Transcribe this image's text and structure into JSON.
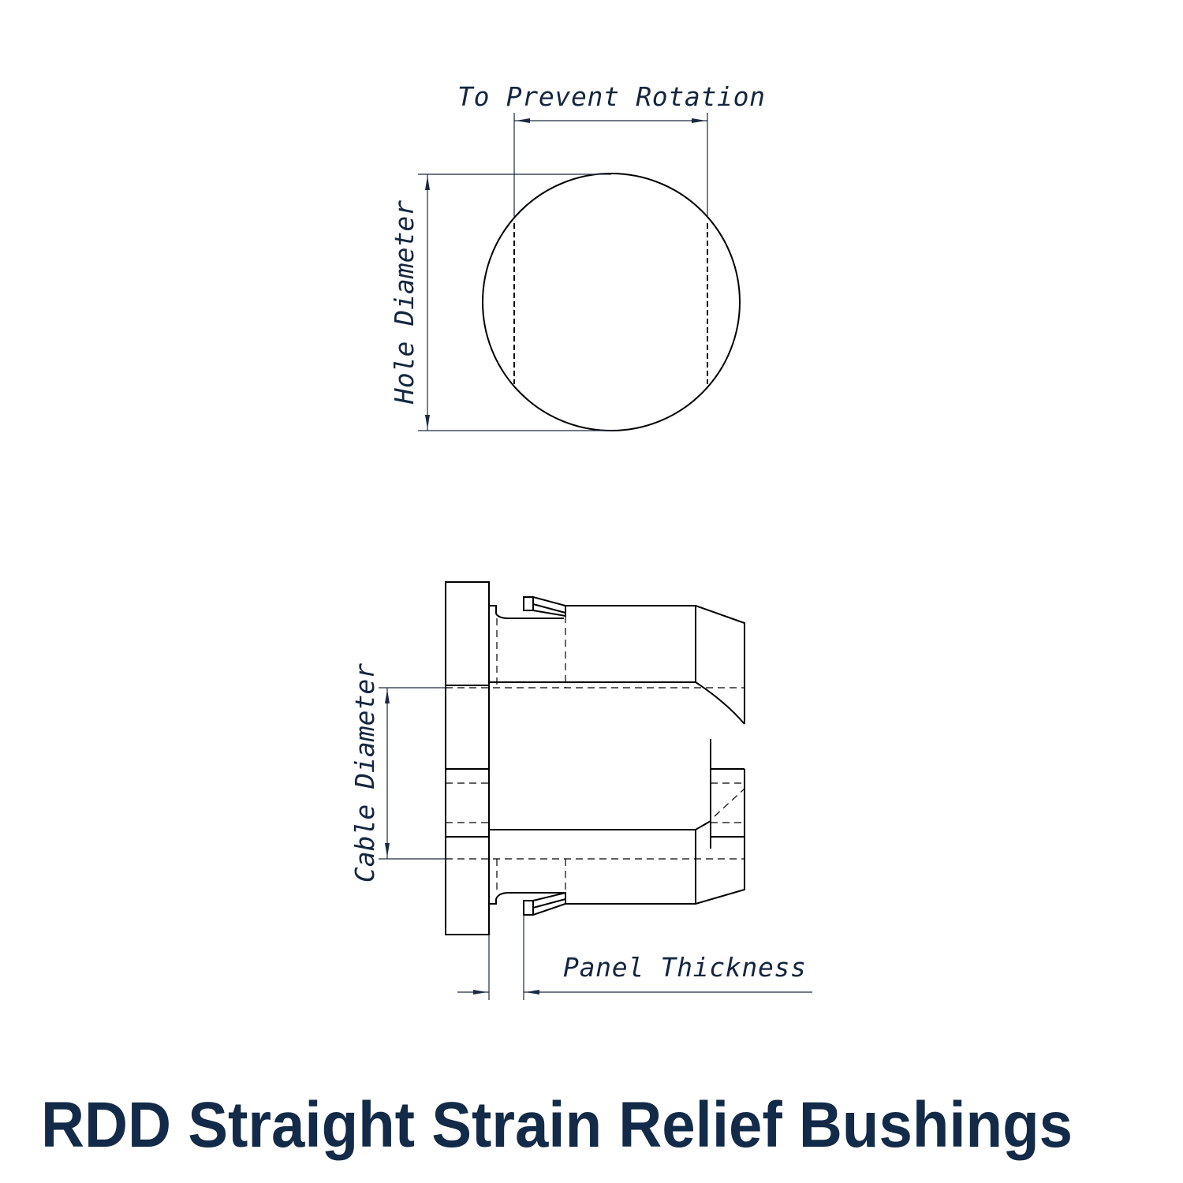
{
  "title": "RDD Straight Strain Relief Bushings",
  "labels": {
    "rotation": "To Prevent Rotation",
    "hole_diameter": "Hole Diameter",
    "cable_diameter": "Cable Diameter",
    "panel_thickness": "Panel Thickness"
  },
  "colors": {
    "text": "#132a48",
    "lines": "#000000",
    "dimensions": "#1b2a41"
  }
}
